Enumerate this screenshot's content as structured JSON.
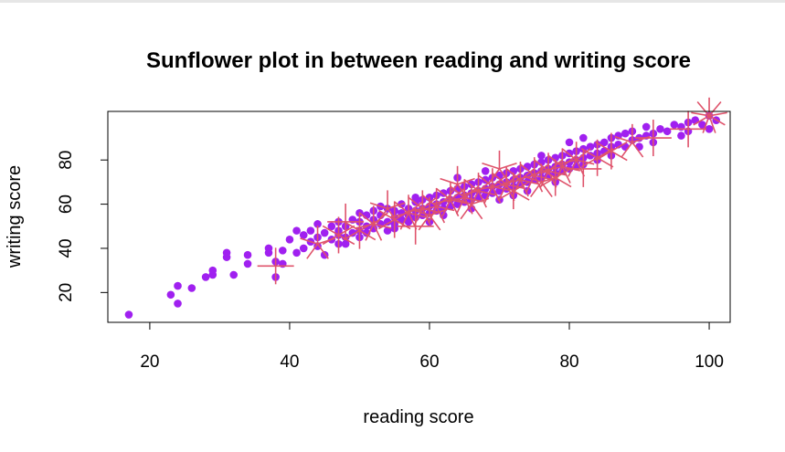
{
  "chart_data": {
    "type": "scatter",
    "subtype": "sunflower",
    "title": "Sunflower plot in between reading and writing score",
    "xlabel": "reading score",
    "ylabel": "writing score",
    "xlim": [
      14,
      103
    ],
    "ylim": [
      6.5,
      102
    ],
    "xticks": [
      20,
      40,
      60,
      80,
      100
    ],
    "yticks": [
      20,
      40,
      60,
      80
    ],
    "grid": false,
    "legend": "none",
    "colors": {
      "points": "#a020f0",
      "petals": "#df536b",
      "axis": "#000000"
    },
    "points": [
      [
        17,
        10
      ],
      [
        23,
        19
      ],
      [
        24,
        15
      ],
      [
        24,
        23
      ],
      [
        26,
        22
      ],
      [
        28,
        27
      ],
      [
        29,
        28
      ],
      [
        29,
        30
      ],
      [
        31,
        36
      ],
      [
        31,
        38
      ],
      [
        32,
        28
      ],
      [
        34,
        33
      ],
      [
        34,
        37
      ],
      [
        37,
        38
      ],
      [
        37,
        40
      ],
      [
        38,
        34
      ],
      [
        38,
        27
      ],
      [
        39,
        33
      ],
      [
        39,
        39
      ],
      [
        40,
        44
      ],
      [
        41,
        38
      ],
      [
        41,
        48
      ],
      [
        42,
        46
      ],
      [
        42,
        40
      ],
      [
        43,
        43
      ],
      [
        43,
        48
      ],
      [
        44,
        45
      ],
      [
        44,
        41
      ],
      [
        45,
        37
      ],
      [
        45,
        47
      ],
      [
        46,
        44
      ],
      [
        46,
        50
      ],
      [
        47,
        48
      ],
      [
        47,
        42
      ],
      [
        47,
        46
      ],
      [
        48,
        50
      ],
      [
        48,
        45
      ],
      [
        48,
        42
      ],
      [
        49,
        47
      ],
      [
        49,
        53
      ],
      [
        50,
        48
      ],
      [
        50,
        52
      ],
      [
        50,
        45
      ],
      [
        51,
        50
      ],
      [
        51,
        55
      ],
      [
        51,
        47
      ],
      [
        52,
        53
      ],
      [
        52,
        49
      ],
      [
        52,
        57
      ],
      [
        53,
        51
      ],
      [
        53,
        55
      ],
      [
        54,
        52
      ],
      [
        54,
        58
      ],
      [
        54,
        48
      ],
      [
        55,
        54
      ],
      [
        55,
        57
      ],
      [
        55,
        51
      ],
      [
        56,
        56
      ],
      [
        56,
        53
      ],
      [
        56,
        60
      ],
      [
        57,
        55
      ],
      [
        57,
        58
      ],
      [
        57,
        52
      ],
      [
        58,
        57
      ],
      [
        58,
        61
      ],
      [
        58,
        54
      ],
      [
        59,
        58
      ],
      [
        59,
        62
      ],
      [
        59,
        55
      ],
      [
        60,
        59
      ],
      [
        60,
        63
      ],
      [
        60,
        56
      ],
      [
        61,
        60
      ],
      [
        61,
        57
      ],
      [
        61,
        64
      ],
      [
        62,
        61
      ],
      [
        62,
        58
      ],
      [
        62,
        65
      ],
      [
        63,
        62
      ],
      [
        63,
        66
      ],
      [
        63,
        59
      ],
      [
        64,
        63
      ],
      [
        64,
        67
      ],
      [
        64,
        60
      ],
      [
        65,
        64
      ],
      [
        65,
        68
      ],
      [
        65,
        61
      ],
      [
        66,
        65
      ],
      [
        66,
        69
      ],
      [
        66,
        62
      ],
      [
        67,
        66
      ],
      [
        67,
        70
      ],
      [
        67,
        63
      ],
      [
        68,
        67
      ],
      [
        68,
        71
      ],
      [
        68,
        64
      ],
      [
        69,
        68
      ],
      [
        69,
        72
      ],
      [
        69,
        65
      ],
      [
        70,
        69
      ],
      [
        70,
        73
      ],
      [
        70,
        66
      ],
      [
        71,
        70
      ],
      [
        71,
        74
      ],
      [
        71,
        67
      ],
      [
        72,
        71
      ],
      [
        72,
        75
      ],
      [
        72,
        68
      ],
      [
        73,
        72
      ],
      [
        73,
        76
      ],
      [
        73,
        69
      ],
      [
        74,
        73
      ],
      [
        74,
        77
      ],
      [
        74,
        70
      ],
      [
        75,
        74
      ],
      [
        75,
        78
      ],
      [
        75,
        71
      ],
      [
        76,
        75
      ],
      [
        76,
        79
      ],
      [
        76,
        72
      ],
      [
        77,
        76
      ],
      [
        77,
        80
      ],
      [
        77,
        73
      ],
      [
        78,
        77
      ],
      [
        78,
        81
      ],
      [
        78,
        74
      ],
      [
        79,
        78
      ],
      [
        79,
        82
      ],
      [
        79,
        75
      ],
      [
        80,
        79
      ],
      [
        80,
        83
      ],
      [
        80,
        76
      ],
      [
        81,
        80
      ],
      [
        81,
        84
      ],
      [
        81,
        77
      ],
      [
        82,
        81
      ],
      [
        82,
        85
      ],
      [
        82,
        78
      ],
      [
        83,
        82
      ],
      [
        83,
        86
      ],
      [
        84,
        83
      ],
      [
        84,
        87
      ],
      [
        84,
        80
      ],
      [
        85,
        84
      ],
      [
        85,
        88
      ],
      [
        86,
        86
      ],
      [
        86,
        90
      ],
      [
        86,
        82
      ],
      [
        87,
        87
      ],
      [
        87,
        91
      ],
      [
        88,
        86
      ],
      [
        88,
        92
      ],
      [
        89,
        89
      ],
      [
        89,
        93
      ],
      [
        90,
        90
      ],
      [
        90,
        86
      ],
      [
        91,
        91
      ],
      [
        91,
        95
      ],
      [
        92,
        92
      ],
      [
        92,
        88
      ],
      [
        93,
        94
      ],
      [
        94,
        93
      ],
      [
        95,
        96
      ],
      [
        96,
        95
      ],
      [
        96,
        91
      ],
      [
        97,
        97
      ],
      [
        97,
        93
      ],
      [
        98,
        98
      ],
      [
        99,
        96
      ],
      [
        100,
        100
      ],
      [
        100,
        94
      ],
      [
        101,
        98
      ],
      [
        47,
        52
      ],
      [
        55,
        49
      ],
      [
        58,
        63
      ],
      [
        62,
        55
      ],
      [
        66,
        58
      ],
      [
        70,
        62
      ],
      [
        74,
        66
      ],
      [
        78,
        70
      ],
      [
        53,
        59
      ],
      [
        60,
        52
      ],
      [
        68,
        75
      ],
      [
        72,
        64
      ],
      [
        76,
        82
      ],
      [
        80,
        88
      ],
      [
        44,
        51
      ],
      [
        50,
        56
      ],
      [
        64,
        72
      ],
      [
        82,
        90
      ]
    ],
    "sunflowers": [
      [
        38,
        32,
        4
      ],
      [
        44,
        42,
        5
      ],
      [
        47,
        46,
        6
      ],
      [
        50,
        48,
        6
      ],
      [
        52,
        51,
        7
      ],
      [
        55,
        53,
        6
      ],
      [
        57,
        56,
        7
      ],
      [
        59,
        58,
        7
      ],
      [
        61,
        59,
        7
      ],
      [
        63,
        62,
        7
      ],
      [
        65,
        63,
        7
      ],
      [
        67,
        66,
        7
      ],
      [
        69,
        68,
        7
      ],
      [
        71,
        69,
        7
      ],
      [
        73,
        71,
        7
      ],
      [
        75,
        73,
        7
      ],
      [
        77,
        75,
        7
      ],
      [
        79,
        77,
        7
      ],
      [
        81,
        80,
        7
      ],
      [
        84,
        81,
        6
      ],
      [
        86,
        84,
        6
      ],
      [
        89,
        88,
        5
      ],
      [
        92,
        90,
        4
      ],
      [
        97,
        94,
        4
      ],
      [
        100,
        100,
        9
      ],
      [
        54,
        58,
        5
      ],
      [
        60,
        55,
        5
      ],
      [
        66,
        60,
        5
      ],
      [
        72,
        66,
        6
      ],
      [
        78,
        72,
        6
      ],
      [
        64,
        69,
        5
      ],
      [
        70,
        76,
        5
      ],
      [
        48,
        52,
        4
      ],
      [
        58,
        50,
        4
      ],
      [
        76,
        70,
        5
      ],
      [
        82,
        76,
        4
      ]
    ]
  }
}
